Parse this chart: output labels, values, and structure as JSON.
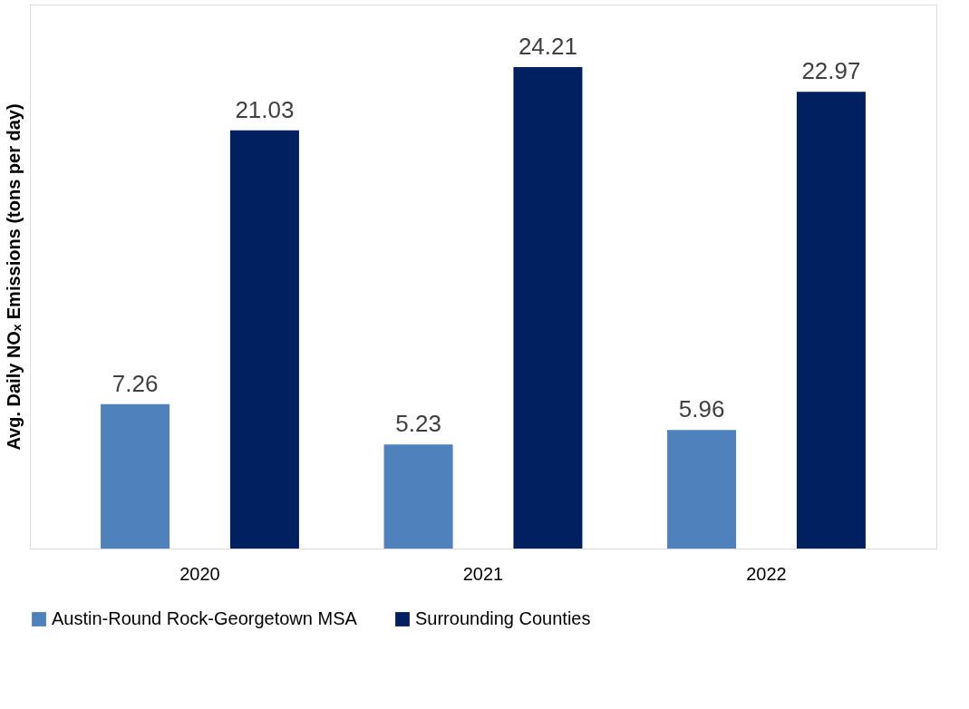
{
  "chart_data": {
    "type": "bar",
    "ylabel": "Avg. Daily NOₓ Emissions (tons per day)",
    "categories": [
      "2020",
      "2021",
      "2022"
    ],
    "series": [
      {
        "name": "Austin-Round Rock-Georgetown MSA",
        "color": "#4f81bd",
        "values": [
          7.26,
          5.23,
          5.96
        ]
      },
      {
        "name": "Surrounding Counties",
        "color": "#002060",
        "values": [
          21.03,
          24.21,
          22.97
        ]
      }
    ],
    "data_labels": true,
    "grid": false,
    "legend": "bottom"
  }
}
